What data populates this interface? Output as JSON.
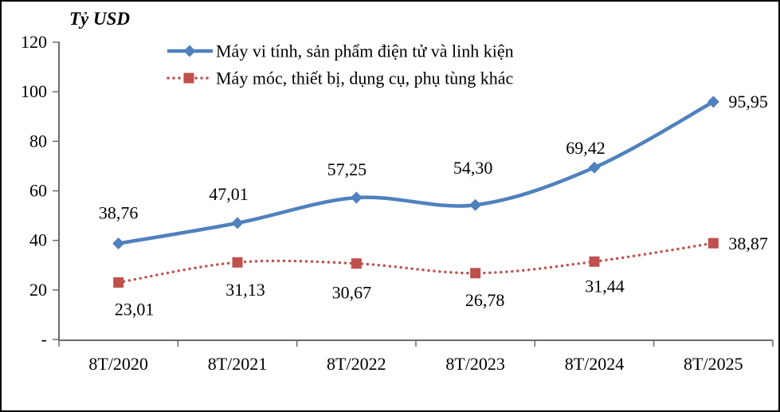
{
  "chart_data": {
    "type": "line",
    "title": "",
    "unit_label": "Tỷ USD",
    "categories": [
      "8T/2020",
      "8T/2021",
      "8T/2022",
      "8T/2023",
      "8T/2024",
      "8T/2025"
    ],
    "series": [
      {
        "name": "Máy vi tính, sản phẩm điện tử và linh kiện",
        "color": "#4F81BD",
        "marker": "diamond",
        "line_style": "solid",
        "smoothed": true,
        "values": [
          38.76,
          47.01,
          57.25,
          54.3,
          69.42,
          95.95
        ],
        "labels": [
          "38,76",
          "47,01",
          "57,25",
          "54,30",
          "69,42",
          "95,95"
        ]
      },
      {
        "name": "Máy móc, thiết bị, dụng cụ, phụ tùng khác",
        "color": "#C0504D",
        "marker": "square",
        "line_style": "dotted",
        "smoothed": true,
        "values": [
          23.01,
          31.13,
          30.67,
          26.78,
          31.44,
          38.87
        ],
        "labels": [
          "23,01",
          "31,13",
          "30,67",
          "26,78",
          "31,44",
          "38,87"
        ]
      }
    ],
    "y_axis": {
      "min": 0,
      "max": 120,
      "tick_interval": 20,
      "tick_labels_bottom_to_top": [
        "-",
        "20",
        "40",
        "60",
        "80",
        "100",
        "120"
      ]
    },
    "x_axis": {
      "label": ""
    },
    "legend_position": "top-center",
    "grid": false,
    "decimal_separator": ",",
    "colors": {
      "axis": "#6b6b6b",
      "text": "#000000",
      "background": "#ffffff",
      "frame_border": "#000000"
    }
  }
}
